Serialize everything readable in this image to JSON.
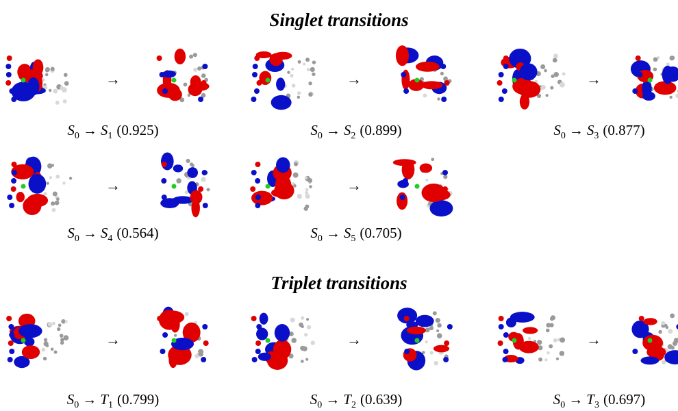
{
  "sections": [
    {
      "title": "Singlet transitions",
      "transitions": [
        {
          "from": "S",
          "from_sub": "0",
          "arrow": "→",
          "to": "S",
          "to_sub": "1",
          "weight": "(0.925)"
        },
        {
          "from": "S",
          "from_sub": "0",
          "arrow": "→",
          "to": "S",
          "to_sub": "2",
          "weight": "(0.899)"
        },
        {
          "from": "S",
          "from_sub": "0",
          "arrow": "→",
          "to": "S",
          "to_sub": "3",
          "weight": "(0.877)"
        },
        {
          "from": "S",
          "from_sub": "0",
          "arrow": "→",
          "to": "S",
          "to_sub": "4",
          "weight": "(0.564)"
        },
        {
          "from": "S",
          "from_sub": "0",
          "arrow": "→",
          "to": "S",
          "to_sub": "5",
          "weight": "(0.705)"
        }
      ]
    },
    {
      "title": "Triplet transitions",
      "transitions": [
        {
          "from": "S",
          "from_sub": "0",
          "arrow": "→",
          "to": "T",
          "to_sub": "1",
          "weight": "(0.799)"
        },
        {
          "from": "S",
          "from_sub": "0",
          "arrow": "→",
          "to": "T",
          "to_sub": "2",
          "weight": "(0.639)"
        },
        {
          "from": "S",
          "from_sub": "0",
          "arrow": "→",
          "to": "T",
          "to_sub": "3",
          "weight": "(0.697)"
        }
      ]
    }
  ]
}
